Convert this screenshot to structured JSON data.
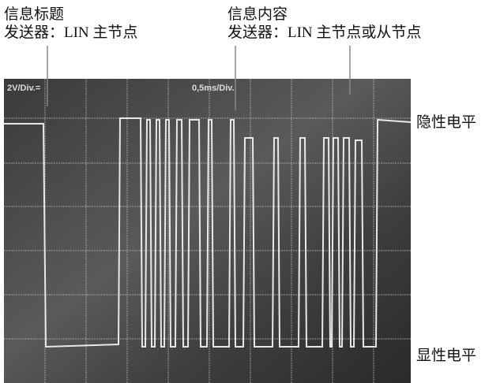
{
  "header": {
    "left": {
      "title": "信息标题",
      "sender": "发送器：LIN 主节点"
    },
    "right": {
      "title": "信息内容",
      "sender": "发送器：LIN 主节点或从节点"
    }
  },
  "scope": {
    "volts": "2V/Div.=",
    "time": "0,5ms/Div."
  },
  "levels": {
    "recessive": "隐性电平",
    "dominant": "显性电平"
  }
}
